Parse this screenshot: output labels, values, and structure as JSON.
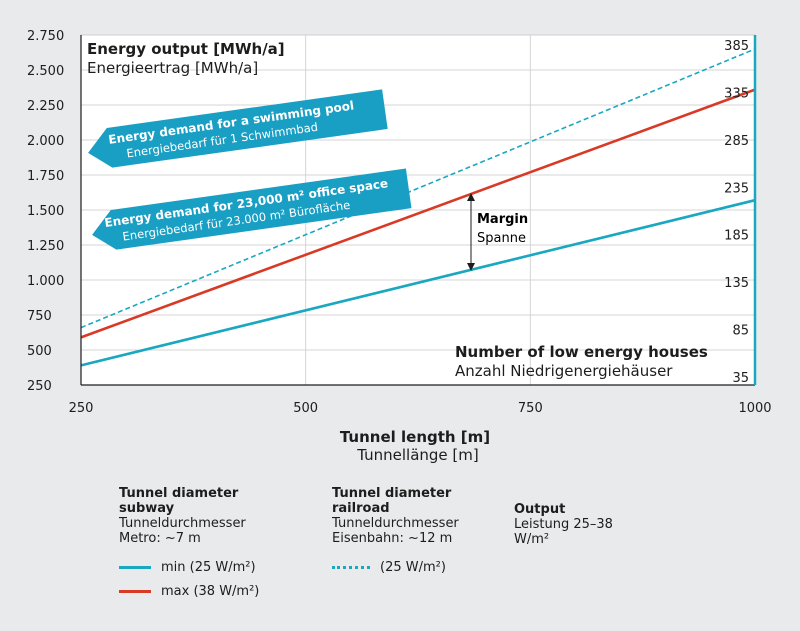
{
  "chart_data": {
    "type": "line",
    "x": [
      250,
      1000
    ],
    "xlim": [
      250,
      1000
    ],
    "xticks": [
      "250",
      "500",
      "750",
      "1000"
    ],
    "xlabel": "Tunnel length [m]",
    "xlabel_de": "Tunnellänge [m]",
    "ylim": [
      250,
      2750
    ],
    "yticks": [
      "2.750",
      "2.500",
      "2.250",
      "2.000",
      "1.750",
      "1.500",
      "1.250",
      "1.000",
      "750",
      "500",
      "250"
    ],
    "y_title": "Energy output [MWh/a]",
    "y_title_de": "Energieertrag [MWh/a]",
    "y2_ticks": [
      "385",
      "335",
      "285",
      "235",
      "185",
      "135",
      "85",
      "35"
    ],
    "y2_title": "Number of low energy houses",
    "y2_title_de": "Anzahl Niedrigenergiehäuser",
    "grid": true,
    "series": [
      {
        "name": "min (25 W/m²)",
        "values": [
          390,
          1570
        ],
        "color": "#1aa8c0",
        "style": "solid"
      },
      {
        "name": "max (38 W/m²)",
        "values": [
          590,
          2360
        ],
        "color": "#d83a26",
        "style": "solid"
      },
      {
        "name": "(25 W/m²)",
        "values": [
          660,
          2650
        ],
        "color": "#1aa8c0",
        "style": "dashed"
      }
    ],
    "annotations": [
      {
        "text": "Energy demand for a swimming pool",
        "text_de": "Energiebedarf für 1 Schwimmbad",
        "value": 2000
      },
      {
        "text": "Energy demand for 23,000 m² office space",
        "text_de": "Energiebedarf für 23.000 m² Bürofläche",
        "value": 1520
      },
      {
        "text": "Margin",
        "text_de": "Spanne",
        "x": 683
      }
    ]
  },
  "legend": {
    "col1_head": "Tunnel diameter subway",
    "col1_sub": "Tunneldurchmesser Metro: ~7 m",
    "col2_head": "Tunnel diameter railroad",
    "col2_sub": "Tunneldurchmesser Eisenbahn: ~12 m",
    "col3_head": "Output",
    "col3_sub": "Leistung 25–38 W/m²",
    "min_label": "min (25 W/m²)",
    "max_label": "max (38 W/m²)",
    "dashed_label": "(25 W/m²)"
  },
  "colors": {
    "min": "#1aa8c0",
    "max": "#d83a26",
    "banner": "#1a9fc4",
    "background": "#e8eaec",
    "plot": "#ffffff"
  }
}
